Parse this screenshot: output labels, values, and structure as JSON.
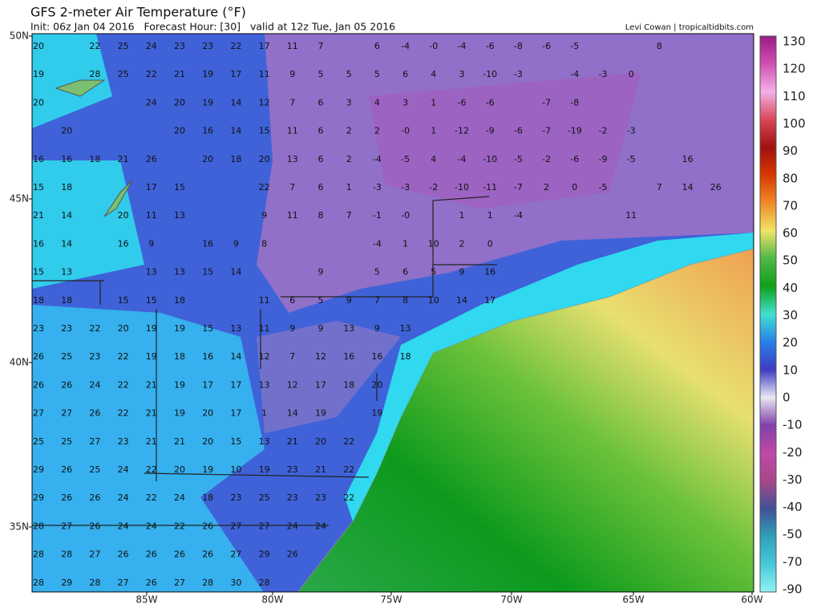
{
  "header": {
    "title": "GFS 2-meter Air Temperature (°F)",
    "subtitle": "Init: 06z Jan 04 2016   Forecast Hour: [30]   valid at 12z Tue, Jan 05 2016",
    "credit": "Levi Cowan | tropicaltidbits.com"
  },
  "map": {
    "latitude_labels": [
      "50N",
      "45N",
      "40N",
      "35N"
    ],
    "longitude_labels": [
      "85W",
      "80W",
      "75W",
      "70W",
      "65W",
      "60W"
    ],
    "station_values": [
      [
        20,
        null,
        22,
        25,
        24,
        23,
        23,
        22,
        17,
        11,
        7,
        null,
        6,
        -4,
        "-0",
        -4,
        -6,
        -8,
        -6,
        -5,
        null,
        null,
        8
      ],
      [
        19,
        null,
        28,
        25,
        22,
        21,
        19,
        17,
        11,
        9,
        5,
        5,
        5,
        6,
        4,
        3,
        -10,
        -3,
        null,
        -4,
        -3,
        0
      ],
      [
        20,
        null,
        null,
        null,
        24,
        20,
        19,
        14,
        12,
        7,
        6,
        3,
        4,
        3,
        1,
        -6,
        -6,
        null,
        -7,
        -8
      ],
      [
        null,
        20,
        null,
        null,
        null,
        20,
        16,
        14,
        15,
        11,
        6,
        2,
        2,
        "-0",
        1,
        -12,
        -9,
        -6,
        -7,
        -19,
        -2,
        -3
      ],
      [
        16,
        16,
        18,
        21,
        26,
        null,
        20,
        18,
        20,
        13,
        6,
        2,
        -4,
        -5,
        4,
        -4,
        -10,
        -5,
        -2,
        -6,
        -9,
        -5,
        null,
        16
      ],
      [
        15,
        18,
        null,
        null,
        17,
        15,
        null,
        null,
        22,
        7,
        6,
        1,
        -3,
        -3,
        -2,
        -10,
        -11,
        -7,
        2,
        0,
        -5,
        null,
        7,
        14,
        26
      ],
      [
        21,
        14,
        null,
        20,
        11,
        13,
        null,
        null,
        9,
        11,
        8,
        7,
        -1,
        "-0",
        null,
        1,
        1,
        -4,
        null,
        null,
        null,
        11
      ],
      [
        16,
        14,
        null,
        16,
        9,
        null,
        16,
        9,
        8,
        null,
        null,
        null,
        -4,
        1,
        10,
        2,
        0
      ],
      [
        15,
        13,
        null,
        null,
        13,
        13,
        15,
        14,
        null,
        null,
        9,
        null,
        5,
        6,
        5,
        9,
        16
      ],
      [
        18,
        18,
        null,
        15,
        15,
        18,
        null,
        null,
        11,
        6,
        5,
        9,
        7,
        8,
        10,
        14,
        17
      ],
      [
        23,
        23,
        22,
        20,
        19,
        19,
        15,
        13,
        11,
        9,
        9,
        13,
        9,
        13
      ],
      [
        26,
        25,
        23,
        22,
        19,
        18,
        16,
        14,
        12,
        7,
        12,
        16,
        16,
        18
      ],
      [
        26,
        26,
        24,
        22,
        21,
        19,
        17,
        17,
        13,
        12,
        17,
        18,
        20
      ],
      [
        27,
        27,
        26,
        22,
        21,
        19,
        20,
        17,
        1,
        14,
        19,
        null,
        19
      ],
      [
        25,
        25,
        27,
        23,
        21,
        21,
        20,
        15,
        13,
        21,
        20,
        22
      ],
      [
        29,
        26,
        25,
        24,
        22,
        20,
        19,
        10,
        19,
        23,
        21,
        22
      ],
      [
        29,
        26,
        26,
        24,
        22,
        24,
        18,
        23,
        25,
        23,
        23,
        22
      ],
      [
        28,
        27,
        26,
        24,
        24,
        22,
        26,
        27,
        27,
        24,
        24
      ],
      [
        28,
        28,
        27,
        26,
        26,
        26,
        26,
        27,
        29,
        26
      ],
      [
        28,
        29,
        28,
        27,
        26,
        27,
        28,
        30,
        28
      ]
    ]
  },
  "colorbar": {
    "labels": [
      130,
      120,
      110,
      100,
      90,
      80,
      70,
      60,
      50,
      40,
      30,
      20,
      10,
      0,
      -10,
      -20,
      -30,
      -40,
      -50,
      -70,
      -90
    ]
  }
}
